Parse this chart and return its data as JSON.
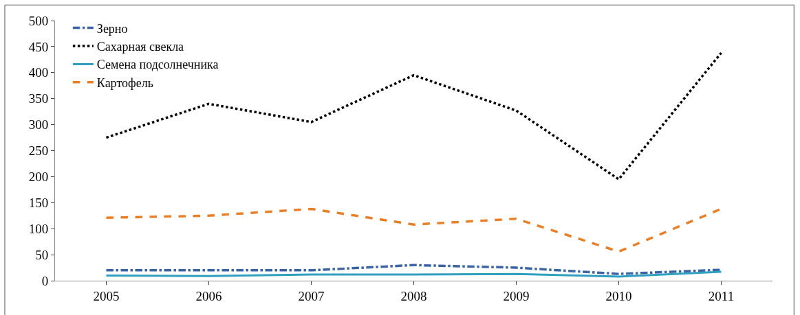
{
  "chart_data": {
    "type": "line",
    "categories": [
      "2005",
      "2006",
      "2007",
      "2008",
      "2009",
      "2010",
      "2011"
    ],
    "ylim": [
      0,
      500
    ],
    "yticks": [
      0,
      50,
      100,
      150,
      200,
      250,
      300,
      350,
      400,
      450,
      500
    ],
    "legend": "top left",
    "marker": "none",
    "series": [
      {
        "name": "Зерно",
        "color": "#3b64a5",
        "line_style": "dashdot",
        "values": [
          20,
          20,
          20,
          30,
          25,
          13,
          21
        ]
      },
      {
        "name": "Сахарная свекла",
        "color": "#000000",
        "line_style": "dotted",
        "values": [
          275,
          340,
          305,
          395,
          327,
          195,
          438
        ]
      },
      {
        "name": "Семена подсолнечника",
        "color": "#2e9fbf",
        "line_style": "solid",
        "values": [
          10,
          9,
          12,
          12,
          13,
          8,
          17
        ]
      },
      {
        "name": "Картофель",
        "color": "#e8802a",
        "line_style": "dashed",
        "values": [
          121,
          125,
          138,
          108,
          119,
          56,
          138
        ]
      }
    ]
  }
}
